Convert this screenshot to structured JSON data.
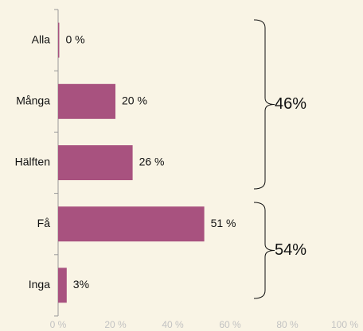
{
  "chart_data": {
    "type": "bar",
    "orientation": "horizontal",
    "categories": [
      "Alla",
      "Många",
      "Hälften",
      "Få",
      "Inga"
    ],
    "values": [
      0.4,
      20,
      26,
      51,
      3
    ],
    "value_labels": [
      "0 %",
      "20 %",
      "26 %",
      "51 %",
      "3%"
    ],
    "color": "#a8527f",
    "xlim": [
      0,
      100
    ],
    "xticks": [
      {
        "value": 0,
        "label": "0 %"
      },
      {
        "value": 20,
        "label": "20 %"
      },
      {
        "value": 40,
        "label": "40 %"
      },
      {
        "value": 60,
        "label": "60 %"
      },
      {
        "value": 80,
        "label": "80 %"
      },
      {
        "value": 100,
        "label": "100 %"
      }
    ],
    "annotations": [
      "46%",
      "54%"
    ]
  }
}
